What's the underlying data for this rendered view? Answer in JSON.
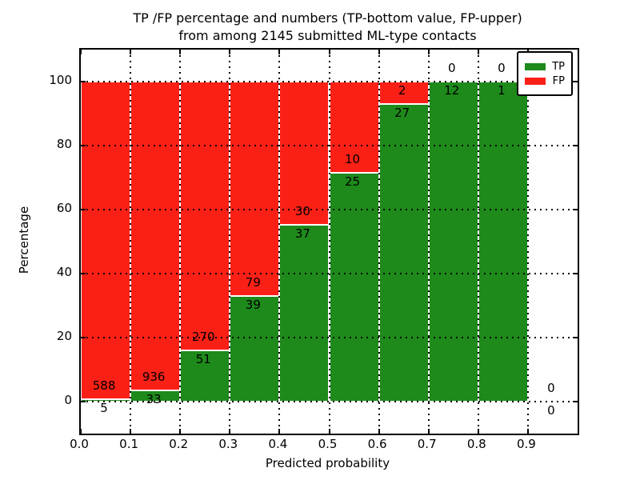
{
  "title": {
    "line1": "TP /FP percentage and numbers (TP-bottom value, FP-upper)",
    "line2": "from among 2145 submitted ML-type contacts"
  },
  "chart_data": {
    "type": "bar",
    "subtype": "stacked-percentage",
    "title": "TP /FP percentage and numbers (TP-bottom value, FP-upper) from among 2145 submitted ML-type contacts",
    "title_lines": [
      "TP /FP percentage and numbers (TP-bottom value, FP-upper)",
      "from among 2145 submitted ML-type contacts"
    ],
    "total_contacts": 2145,
    "xlabel": "Predicted probability",
    "ylabel": "Percentage",
    "xlim": [
      0.0,
      1.0
    ],
    "ylim": [
      -10,
      110
    ],
    "grid": "dotted",
    "bin_width": 0.1,
    "bin_starts": [
      0.0,
      0.1,
      0.2,
      0.3,
      0.4,
      0.5,
      0.6,
      0.7,
      0.8,
      0.9
    ],
    "x_ticks": [
      0.0,
      0.1,
      0.2,
      0.3,
      0.4,
      0.5,
      0.6,
      0.7,
      0.8,
      0.9
    ],
    "x_tick_labels": [
      "0.0",
      "0.1",
      "0.2",
      "0.3",
      "0.4",
      "0.5",
      "0.6",
      "0.7",
      "0.8",
      "0.9"
    ],
    "y_ticks": [
      0,
      20,
      40,
      60,
      80,
      100
    ],
    "y_tick_labels": [
      "0",
      "20",
      "40",
      "60",
      "80",
      "100"
    ],
    "series": [
      {
        "name": "TP",
        "color": "#1e8a1b",
        "counts": [
          5,
          33,
          51,
          39,
          37,
          25,
          27,
          12,
          1,
          0
        ]
      },
      {
        "name": "FP",
        "color": "#fb2016",
        "counts": [
          588,
          936,
          270,
          79,
          30,
          10,
          2,
          0,
          0,
          0
        ]
      }
    ],
    "legend": {
      "position": "upper right",
      "entries": [
        {
          "label": "TP",
          "color": "#1e8a1b"
        },
        {
          "label": "FP",
          "color": "#fb2016"
        }
      ]
    }
  }
}
